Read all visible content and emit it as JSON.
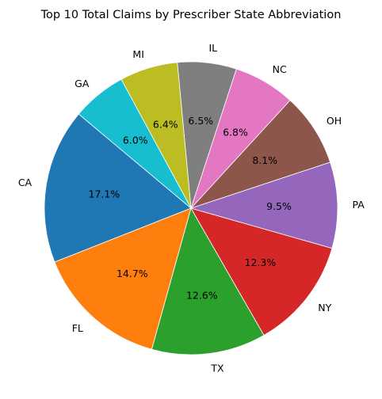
{
  "chart_data": {
    "type": "pie",
    "title": "Top 10 Total Claims by Prescriber State Abbreviation",
    "slices": [
      {
        "label": "CA",
        "pct": 17.1,
        "pct_label": "17.1%",
        "color": "#1f77b4"
      },
      {
        "label": "FL",
        "pct": 14.7,
        "pct_label": "14.7%",
        "color": "#ff7f0e"
      },
      {
        "label": "TX",
        "pct": 12.6,
        "pct_label": "12.6%",
        "color": "#2ca02c"
      },
      {
        "label": "NY",
        "pct": 12.3,
        "pct_label": "12.3%",
        "color": "#d62728"
      },
      {
        "label": "PA",
        "pct": 9.5,
        "pct_label": "9.5%",
        "color": "#9467bd"
      },
      {
        "label": "OH",
        "pct": 8.1,
        "pct_label": "8.1%",
        "color": "#8c564b"
      },
      {
        "label": "NC",
        "pct": 6.8,
        "pct_label": "6.8%",
        "color": "#e377c2"
      },
      {
        "label": "IL",
        "pct": 6.5,
        "pct_label": "6.5%",
        "color": "#7f7f7f"
      },
      {
        "label": "MI",
        "pct": 6.4,
        "pct_label": "6.4%",
        "color": "#bcbd22"
      },
      {
        "label": "GA",
        "pct": 6.0,
        "pct_label": "6.0%",
        "color": "#17becf"
      }
    ],
    "start_angle_deg": 140,
    "direction": "counterclockwise",
    "slice_edge_color": "#ffffff"
  }
}
